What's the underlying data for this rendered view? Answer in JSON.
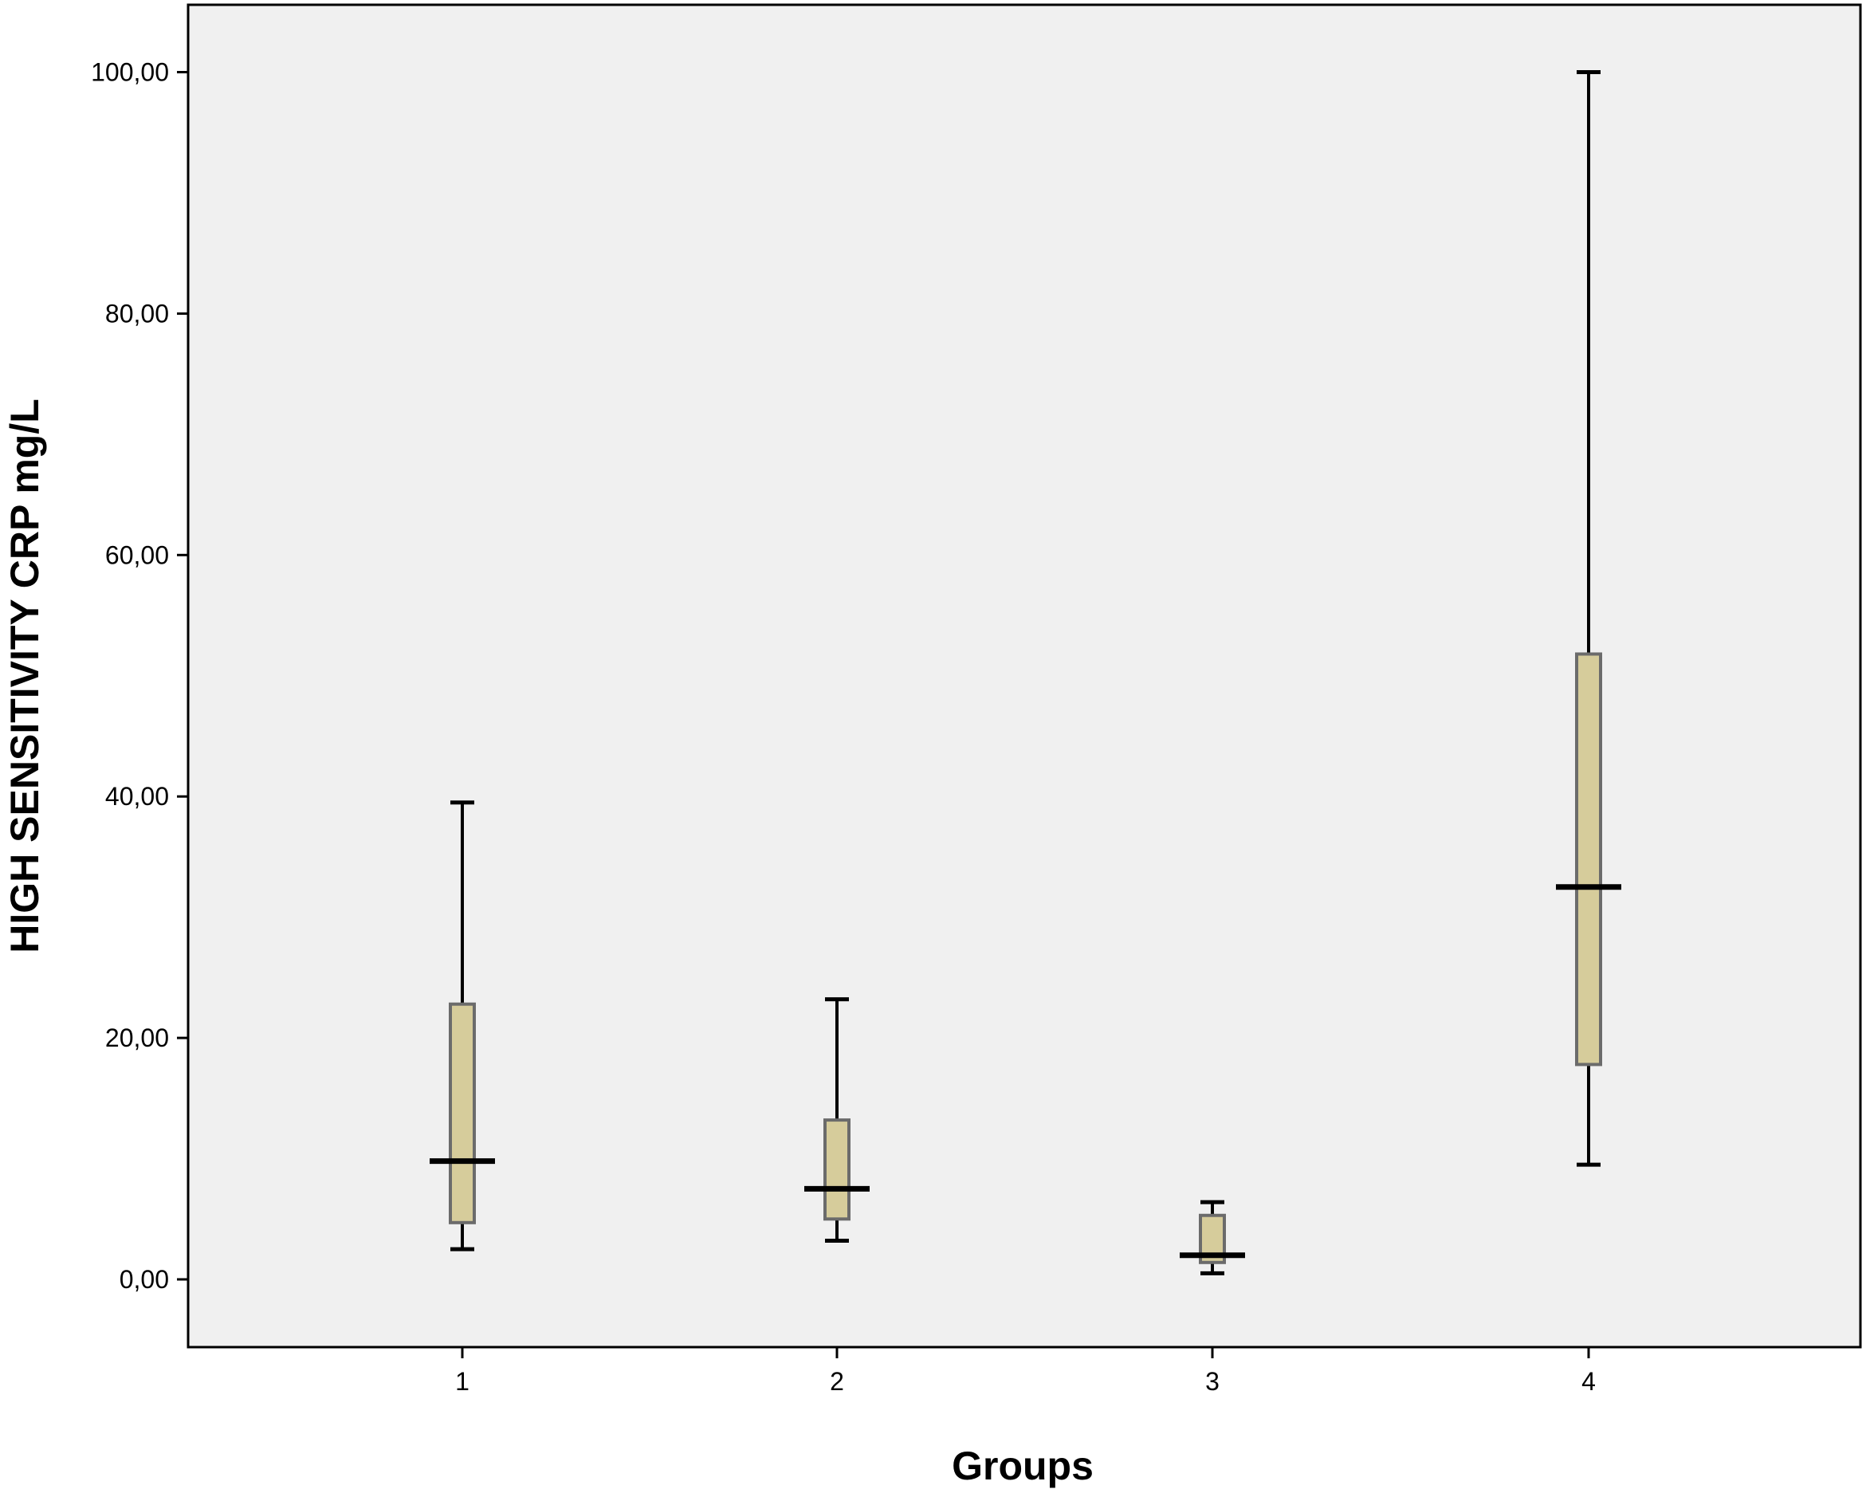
{
  "chart_data": {
    "type": "boxplot",
    "xlabel": "Groups",
    "ylabel": "HIGH SENSITIVITY CRP  mg/L",
    "ylim": [
      -5,
      105
    ],
    "yticks": [
      0,
      20,
      40,
      60,
      80,
      100
    ],
    "ytick_labels": [
      "0,00",
      "20,00",
      "40,00",
      "60,00",
      "80,00",
      "100,00"
    ],
    "categories": [
      "1",
      "2",
      "3",
      "4"
    ],
    "boxes": [
      {
        "group": "1",
        "min": 2.5,
        "q1": 4.7,
        "median": 9.8,
        "q3": 22.8,
        "max": 39.5
      },
      {
        "group": "2",
        "min": 3.2,
        "q1": 5.0,
        "median": 7.5,
        "q3": 13.2,
        "max": 23.2
      },
      {
        "group": "3",
        "min": 0.5,
        "q1": 1.4,
        "median": 2.0,
        "q3": 5.3,
        "max": 6.4
      },
      {
        "group": "4",
        "min": 9.5,
        "q1": 17.8,
        "median": 32.5,
        "q3": 51.8,
        "max": 100.0
      }
    ],
    "grid": false,
    "colors": {
      "plot_background": "#f0f0f0",
      "box_fill": "#d6cc9b",
      "box_edge": "#6b6b6b",
      "line": "#000000"
    }
  }
}
